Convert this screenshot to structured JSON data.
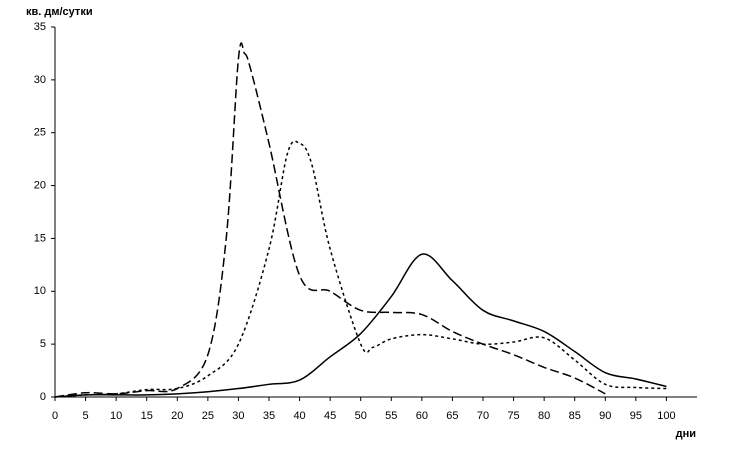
{
  "chart_data": {
    "type": "line",
    "y_label": "кв. дм/сутки",
    "x_label": "дни",
    "xlim": [
      0,
      105
    ],
    "xticks": [
      0,
      5,
      10,
      15,
      20,
      25,
      30,
      35,
      40,
      45,
      50,
      55,
      60,
      65,
      70,
      75,
      80,
      85,
      90,
      95,
      100
    ],
    "ylim": [
      0,
      35
    ],
    "yticks": [
      0,
      5,
      10,
      15,
      20,
      25,
      30,
      35
    ],
    "series": [
      {
        "color": "#000000",
        "dash": "solid",
        "x": [
          0,
          5,
          10,
          15,
          20,
          25,
          30,
          35,
          40,
          45,
          50,
          55,
          60,
          65,
          70,
          75,
          80,
          85,
          90,
          95,
          100
        ],
        "values": [
          0,
          0.2,
          0.2,
          0.2,
          0.3,
          0.5,
          0.8,
          1.2,
          1.6,
          3.8,
          6,
          9.5,
          13.5,
          11,
          8.2,
          7.2,
          6.2,
          4.3,
          2.3,
          1.7,
          1.0
        ]
      },
      {
        "color": "#000000",
        "dash": "dashed",
        "x": [
          0,
          5,
          10,
          15,
          20,
          25,
          28,
          30,
          31,
          32,
          35,
          40,
          45,
          50,
          55,
          60,
          65,
          70,
          75,
          80,
          85,
          90
        ],
        "values": [
          0,
          0.4,
          0.3,
          0.6,
          0.8,
          4,
          15,
          32,
          32.5,
          31,
          24,
          11.5,
          10,
          8.2,
          8,
          7.8,
          6.2,
          5,
          4,
          2.8,
          1.8,
          0.3
        ]
      },
      {
        "color": "#000000",
        "dash": "dotted",
        "x": [
          0,
          5,
          10,
          15,
          20,
          25,
          30,
          35,
          38,
          40,
          42,
          45,
          50,
          52,
          55,
          60,
          65,
          70,
          75,
          80,
          85,
          90,
          95,
          100
        ],
        "values": [
          0,
          0.2,
          0.3,
          0.7,
          0.8,
          2,
          5,
          14,
          23,
          24,
          22,
          14,
          5,
          4.7,
          5.5,
          5.9,
          5.5,
          5,
          5.2,
          5.6,
          3.5,
          1.2,
          0.9,
          0.8
        ]
      }
    ]
  }
}
